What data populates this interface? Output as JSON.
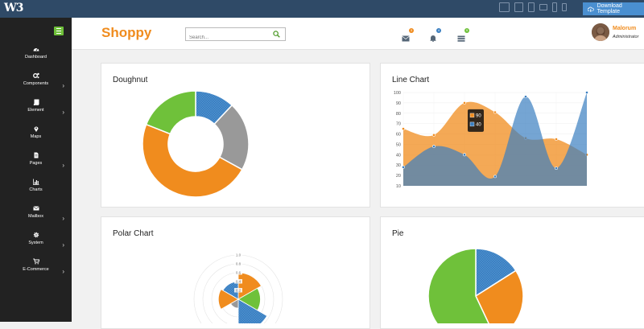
{
  "topbar": {
    "logo": "W3",
    "download_label": "Download Template",
    "device_icons": [
      "desktop-icon",
      "tablet-landscape-icon",
      "tablet-portrait-icon",
      "phone-landscape-icon",
      "phone-portrait-icon",
      "phone-small-icon"
    ]
  },
  "sidebar": {
    "items": [
      {
        "label": "Dashboard",
        "icon": "dashboard-icon",
        "chevron": false
      },
      {
        "label": "Components",
        "icon": "cogs-icon",
        "chevron": true
      },
      {
        "label": "Element",
        "icon": "book-icon",
        "chevron": true
      },
      {
        "label": "Maps",
        "icon": "map-marker-icon",
        "chevron": false
      },
      {
        "label": "Pages",
        "icon": "file-icon",
        "chevron": true
      },
      {
        "label": "Charts",
        "icon": "bar-chart-icon",
        "chevron": false
      },
      {
        "label": "Mailbox",
        "icon": "envelope-icon",
        "chevron": true
      },
      {
        "label": "System",
        "icon": "gear-icon",
        "chevron": true
      },
      {
        "label": "E-Commerce",
        "icon": "cart-icon",
        "chevron": true
      }
    ]
  },
  "header": {
    "brand": "Shoppy",
    "search_placeholder": "Search...",
    "notifications": [
      {
        "icon": "envelope-icon",
        "count": "3",
        "color": "#f08c1e"
      },
      {
        "icon": "bell-icon",
        "count": "4",
        "color": "#3a7fc1"
      },
      {
        "icon": "tasks-icon",
        "count": "9",
        "color": "#6fc13a"
      }
    ],
    "user": {
      "name": "Malorum",
      "role": "Administrator"
    }
  },
  "colors": {
    "accent": "#f08c1e",
    "green": "#6fc13a",
    "blue": "#3a7fc1",
    "gray": "#999999",
    "topbar": "#2f4a67"
  },
  "cards": {
    "doughnut": "Doughnut",
    "line": "Line Chart",
    "polar": "Polar Chart",
    "pie": "Pie"
  },
  "chart_data": [
    {
      "type": "pie",
      "variant": "doughnut",
      "slices": [
        {
          "color": "#3a7fc1",
          "value": 12
        },
        {
          "color": "#999999",
          "value": 21
        },
        {
          "color": "#f08c1e",
          "value": 48
        },
        {
          "color": "#6fc13a",
          "value": 19
        }
      ]
    },
    {
      "type": "area",
      "ylim": [
        10,
        100
      ],
      "yticks": [
        "100",
        "90",
        "80",
        "70",
        "60",
        "50",
        "40",
        "30",
        "20",
        "10"
      ],
      "series": [
        {
          "color": "#f08c1e",
          "values": [
            65,
            59,
            90,
            81,
            56,
            55,
            40
          ]
        },
        {
          "color": "#3a7fc1",
          "values": [
            28,
            48,
            40,
            19,
            96,
            27,
            100
          ]
        }
      ],
      "tooltip": {
        "values": [
          "90",
          "40"
        ]
      }
    },
    {
      "type": "polar",
      "rlim": [
        0,
        1
      ],
      "ticks": [
        "1.0",
        "0.8",
        "0.6",
        "0.4",
        "0.2"
      ],
      "segments": [
        {
          "color": "#f08c1e",
          "value": 0.6
        },
        {
          "color": "#6fc13a",
          "value": 0.5
        },
        {
          "color": "#3a7fc1",
          "value": 0.75
        },
        {
          "color": "#999999",
          "value": 0.2
        },
        {
          "color": "#f08c1e",
          "value": 0.45
        },
        {
          "color": "#3a7fc1",
          "value": 0.4
        }
      ]
    },
    {
      "type": "pie",
      "slices": [
        {
          "color": "#3a7fc1",
          "value": 16
        },
        {
          "color": "#f08c1e",
          "value": 27
        },
        {
          "color": "#6fc13a",
          "value": 57
        }
      ]
    }
  ]
}
